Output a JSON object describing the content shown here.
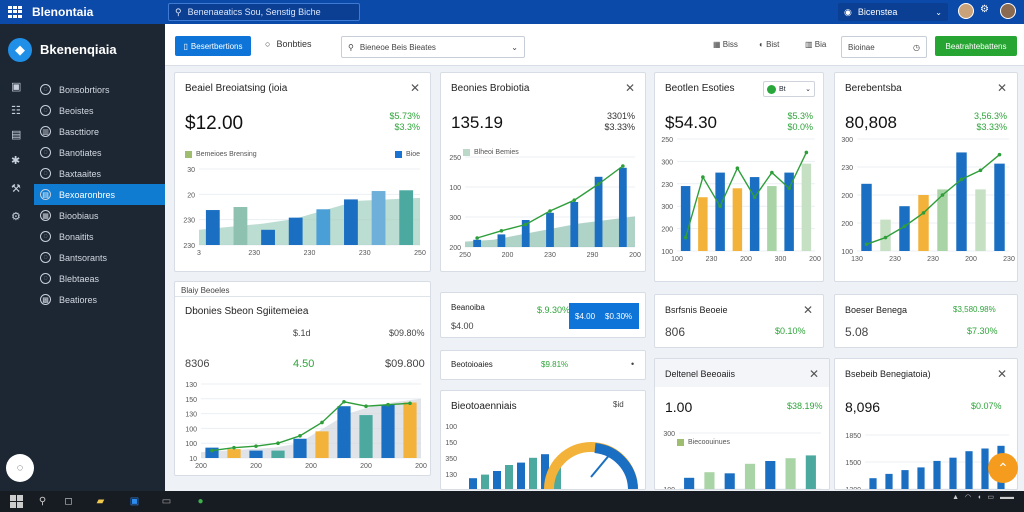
{
  "app": {
    "title": "Blenontaia"
  },
  "topbar": {
    "search_text": "Benenaeatics Sou, Senstig Biche",
    "user_label": "Bicenstea"
  },
  "sidebar": {
    "brand": "Bkenenqiaia",
    "items": [
      {
        "label": "Bonsobrtiors",
        "icon": "circle-icon"
      },
      {
        "label": "Beoistes",
        "icon": "circle-icon"
      },
      {
        "label": "Bascttiore",
        "icon": "chart-icon"
      },
      {
        "label": "Banotiates",
        "icon": "circle-icon"
      },
      {
        "label": "Baxtaaites",
        "icon": "circle-icon"
      },
      {
        "label": "Bexoaronbres",
        "icon": "document-icon"
      },
      {
        "label": "Bioobiaus",
        "icon": "archive-icon"
      },
      {
        "label": "Bonaitits",
        "icon": "circle-icon"
      },
      {
        "label": "Bantsorants",
        "icon": "circle-icon"
      },
      {
        "label": "Blebtaeas",
        "icon": "circle-icon"
      },
      {
        "label": "Beatiores",
        "icon": "grid-icon"
      }
    ],
    "active_index": 5
  },
  "toolbar": {
    "primary_button": "Besertbertions",
    "filter_label": "Bonbties",
    "select_value": "Bieneoe Beis Bieates",
    "icon1": "Biss",
    "icon2": "Bist",
    "icon3": "Bia",
    "date_label": "Bioinae",
    "green_button": "Beatrahtebattens"
  },
  "cards": {
    "c1": {
      "title": "Beaiel Breoiatsing (ioia",
      "value": "$12.00",
      "change1": "$5.73%",
      "change2": "$3.3%",
      "legend1": "Bemeioes Brensing",
      "legend2": "Bioe"
    },
    "c2": {
      "title": "Beonies Brobiotia",
      "value": "135.19",
      "change1": "3301%",
      "change2": "$3.33%",
      "legend1": "Blheoi Bemies"
    },
    "c3": {
      "title": "Beotlen Esoties",
      "value": "$54.30",
      "change1": "$5.3%",
      "change2": "$0.0%",
      "seg_label": "Bt"
    },
    "c4": {
      "title": "Berebentsba",
      "value": "80,808",
      "change1": "3,56.3%",
      "change2": "$3.33%"
    },
    "c5": {
      "title": "Dbonies Sbeon Sgiitemeiea",
      "header": "Blaiy Beoeles",
      "small1": "$.1d",
      "small2": "$09.80%",
      "row_left": "8306",
      "row_mid": "4.50",
      "row_right": "$09.800"
    },
    "c6": {
      "title": "Beanoiba",
      "value": "$4.00",
      "pct": "$.9.30%",
      "blue_value": "$4.00",
      "blue_pct": "$0.30%"
    },
    "c7": {
      "title": "Beotoioaies",
      "pct": "$9.81%",
      "close": "•"
    },
    "c8": {
      "title": "Bieotoaenniais",
      "close": "$id"
    },
    "c9": {
      "title": "Bsrfsnis Beoeie",
      "value": "806",
      "change": "$0.10%"
    },
    "c10": {
      "title": "Boeser Benega",
      "value": "5.08",
      "change": "$7.30%",
      "top_right": "$3,580.98%"
    },
    "c11": {
      "title": "Deltenel Beeoaiis",
      "value": "1.00",
      "change": "$38.19%",
      "legend": "Biecoouinues"
    },
    "c12": {
      "title": "Bsebeib Benegiatoia)",
      "value": "8,096",
      "change": "$0.07%"
    }
  },
  "axis": {
    "c1_x": [
      "3",
      "230",
      "230",
      "230",
      "250"
    ],
    "c1_y": [
      "30",
      "20",
      "230",
      "230"
    ],
    "c2_x": [
      "250",
      "200",
      "230",
      "290",
      "200"
    ],
    "c2_y": [
      "250",
      "100",
      "300",
      "200"
    ],
    "c3_x": [
      "100",
      "230",
      "200",
      "300",
      "200"
    ],
    "c3_y": [
      "250",
      "300",
      "230",
      "300",
      "200",
      "100"
    ],
    "c4_x": [
      "130",
      "230",
      "230",
      "200",
      "230"
    ],
    "c4_y": [
      "300",
      "230",
      "200",
      "200",
      "100"
    ],
    "c5_x": [
      "200",
      "200",
      "200",
      "200",
      "200"
    ],
    "c5_y": [
      "130",
      "150",
      "130",
      "100",
      "100",
      "10"
    ],
    "c8_y": [
      "100",
      "150",
      "350",
      "130"
    ],
    "c11_y": [
      "300",
      "100"
    ],
    "c12_y": [
      "1850",
      "1500",
      "1300"
    ]
  },
  "chart_data": [
    {
      "type": "bar",
      "series": [
        {
          "values": [
            46,
            50,
            20,
            36,
            47,
            60,
            71,
            72
          ]
        }
      ]
    },
    {
      "type": "bar",
      "series": [
        {
          "values": [
            8,
            14,
            30,
            38,
            50,
            78,
            88
          ]
        },
        {
          "values": [
            10,
            18,
            25,
            40,
            52,
            70,
            90
          ]
        }
      ]
    },
    {
      "type": "bar",
      "series": [
        {
          "values": [
            58,
            48,
            70,
            56,
            66,
            58,
            70,
            78
          ]
        }
      ]
    },
    {
      "type": "bar",
      "series": [
        {
          "values": [
            60,
            28,
            40,
            50,
            55,
            88,
            55,
            78
          ]
        }
      ]
    },
    {
      "type": "bar",
      "series": [
        {
          "values": [
            14,
            12,
            10,
            10,
            26,
            36,
            70,
            58,
            72,
            75
          ]
        }
      ]
    },
    {
      "type": "bar",
      "series": [
        {
          "values": [
            18,
            24,
            30,
            40,
            44,
            52,
            58,
            40
          ]
        }
      ]
    },
    {
      "type": "bar",
      "series": [
        {
          "values": [
            20,
            30,
            28,
            45,
            50,
            55,
            60
          ]
        }
      ]
    },
    {
      "type": "bar",
      "series": [
        {
          "values": [
            20,
            28,
            35,
            40,
            52,
            58,
            70,
            75,
            80
          ]
        }
      ]
    }
  ]
}
